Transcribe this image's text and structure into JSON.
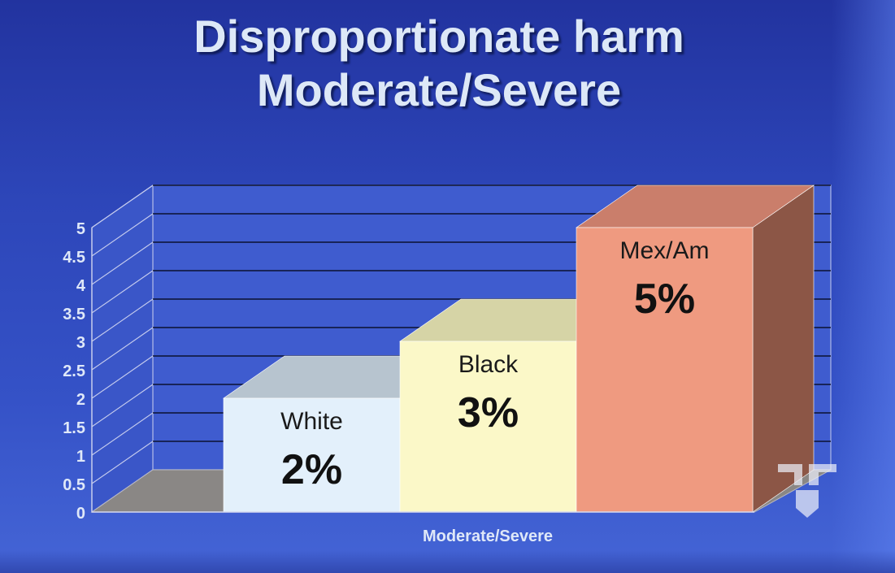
{
  "title_line1": "Disproportionate harm",
  "title_line2": "Moderate/Severe",
  "chart_data": {
    "type": "bar",
    "categories": [
      "White",
      "Black",
      "Mex/Am"
    ],
    "values": [
      2,
      3,
      5
    ],
    "value_labels": [
      "2%",
      "3%",
      "5%"
    ],
    "xlabel": "Moderate/Severe",
    "ylabel": "",
    "ylim": [
      0,
      5
    ],
    "yticks": [
      "0",
      "0.5",
      "1",
      "1.5",
      "2",
      "2.5",
      "3",
      "3.5",
      "4",
      "4.5",
      "5"
    ],
    "grid": true,
    "style": "3d",
    "colors": {
      "White": "#e3f0fb",
      "Black": "#fbf8c8",
      "Mex/Am": "#ef9a80",
      "background": "#3f5ccf",
      "floor": "#8a8785"
    }
  }
}
